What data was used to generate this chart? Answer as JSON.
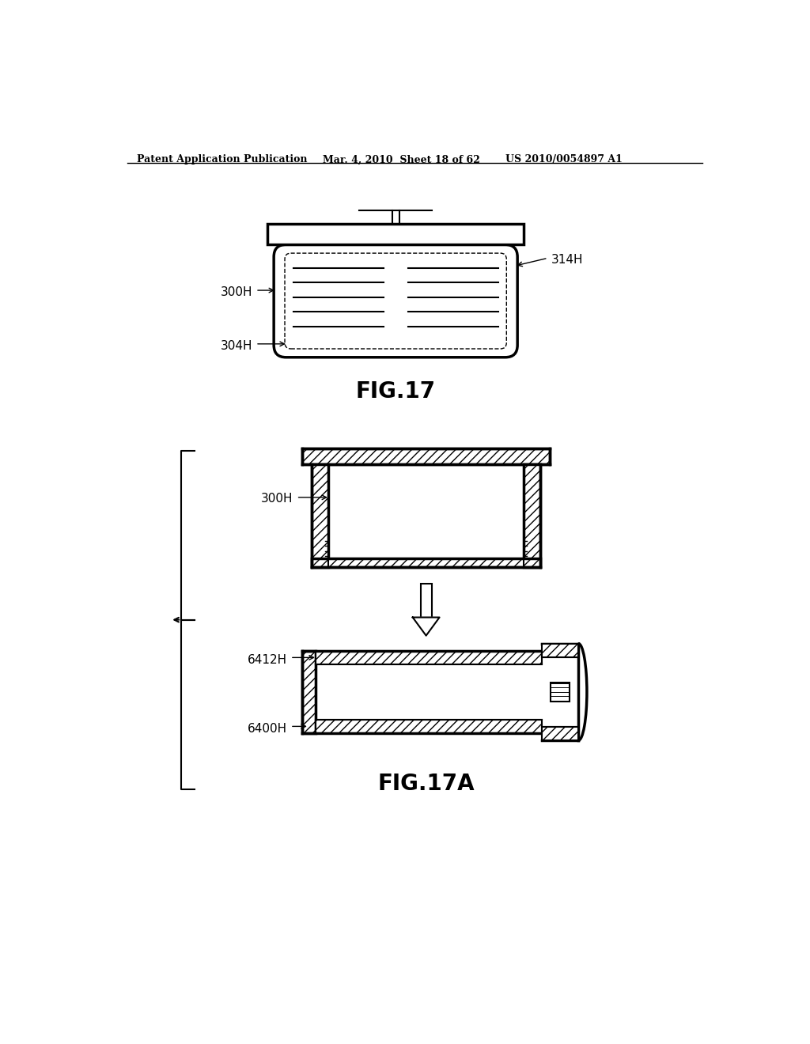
{
  "header_left": "Patent Application Publication",
  "header_mid": "Mar. 4, 2010  Sheet 18 of 62",
  "header_right": "US 2010/0054897 A1",
  "fig17_title": "FIG.17",
  "fig17a_title": "FIG.17A",
  "bg_color": "#ffffff",
  "line_color": "#000000"
}
